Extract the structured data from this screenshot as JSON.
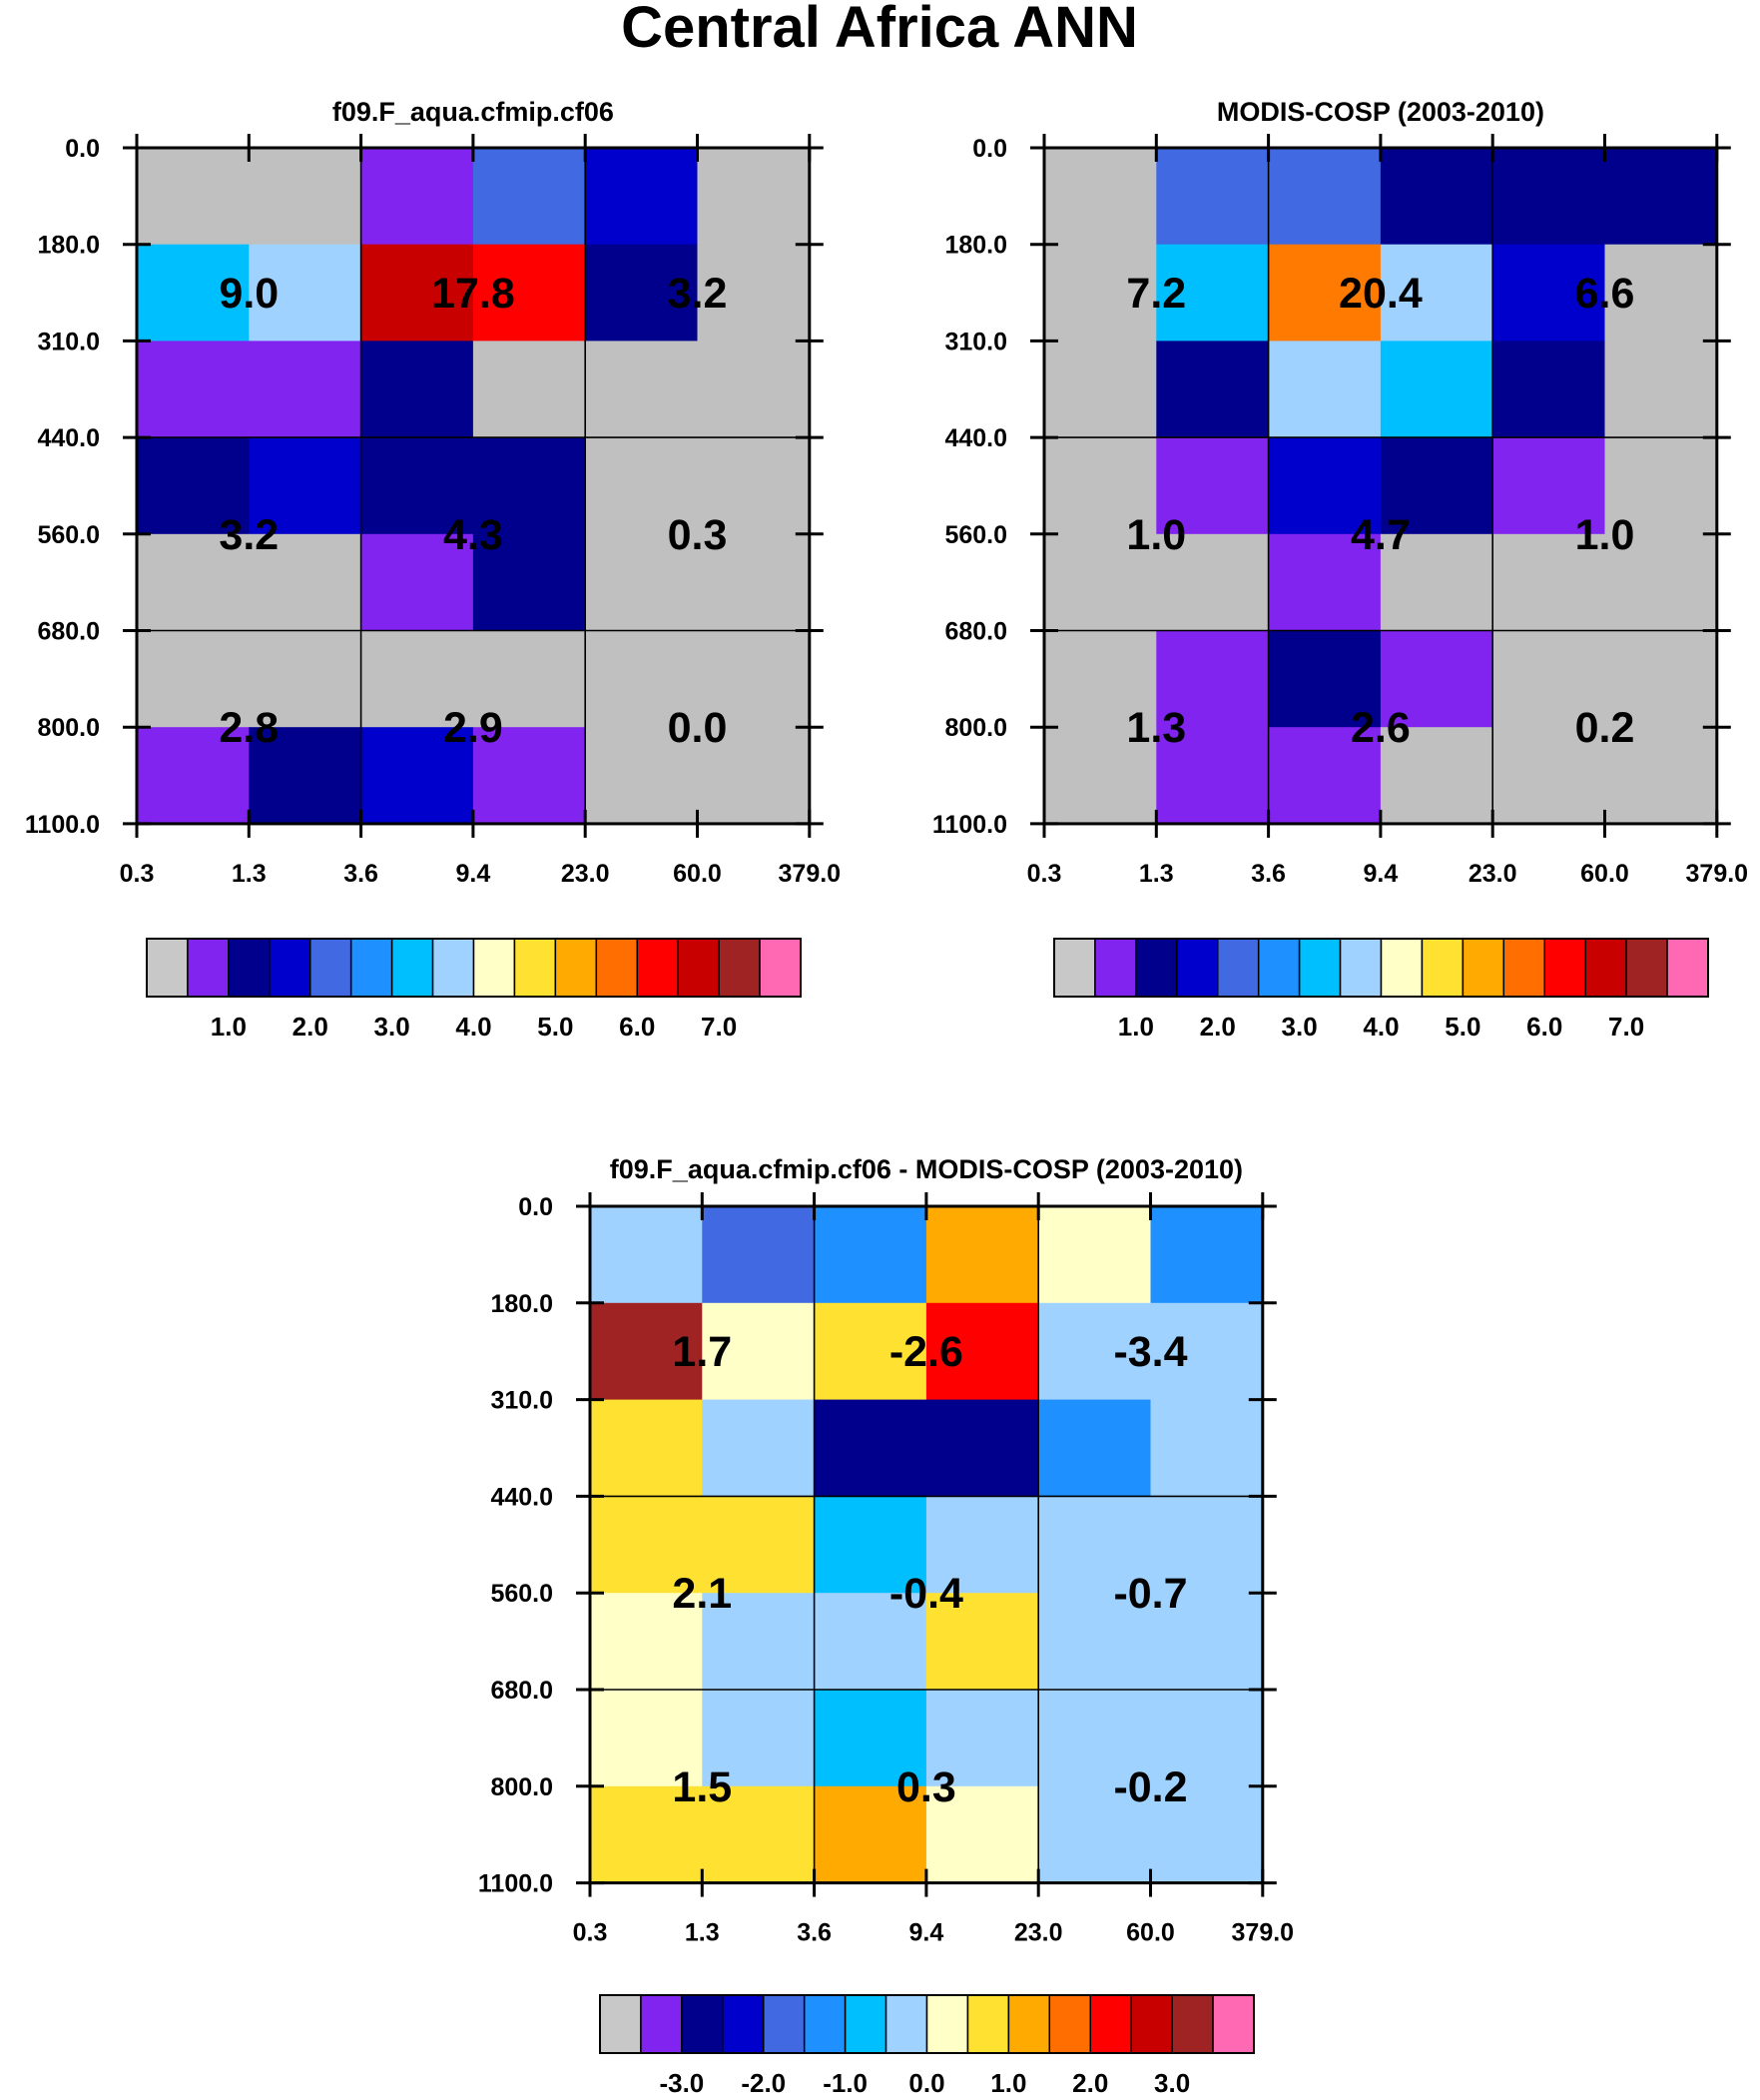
{
  "title": "Central Africa ANN",
  "chart_data": [
    {
      "type": "heatmap",
      "title": "f09.F_aqua.cfmip.cf06",
      "x_tick_labels": [
        "0.3",
        "1.3",
        "3.6",
        "9.4",
        "23.0",
        "60.0",
        "379.0"
      ],
      "y_tick_labels": [
        "0.0",
        "180.0",
        "310.0",
        "440.0",
        "560.0",
        "680.0",
        "800.0",
        "1100.0"
      ],
      "cell_colors": [
        [
          "#c0c0c0",
          "#c0c0c0",
          "#8224f0",
          "#4169e1",
          "#0000cd",
          "#c0c0c0"
        ],
        [
          "#00bfff",
          "#a0d2ff",
          "#c80000",
          "#ff0000",
          "#00008c",
          "#c0c0c0"
        ],
        [
          "#8224f0",
          "#8224f0",
          "#00008c",
          "#c0c0c0",
          "#c0c0c0",
          "#c0c0c0"
        ],
        [
          "#00008c",
          "#0000cd",
          "#00008c",
          "#00008c",
          "#c0c0c0",
          "#c0c0c0"
        ],
        [
          "#c0c0c0",
          "#c0c0c0",
          "#8224f0",
          "#00008c",
          "#c0c0c0",
          "#c0c0c0"
        ],
        [
          "#c0c0c0",
          "#c0c0c0",
          "#c0c0c0",
          "#c0c0c0",
          "#c0c0c0",
          "#c0c0c0"
        ],
        [
          "#8224f0",
          "#00008c",
          "#0000cd",
          "#8224f0",
          "#c0c0c0",
          "#c0c0c0"
        ]
      ],
      "group_totals": [
        [
          "9.0",
          "17.8",
          "3.2"
        ],
        [
          "3.2",
          "4.3",
          "0.3"
        ],
        [
          "2.8",
          "2.9",
          "0.0"
        ]
      ],
      "colorbar": {
        "colors": [
          "#c8c8c8",
          "#8224f0",
          "#00008c",
          "#0000cd",
          "#4169e1",
          "#1e90ff",
          "#00bfff",
          "#a0d2ff",
          "#ffffc8",
          "#ffe132",
          "#ffaa00",
          "#ff6e00",
          "#ff0000",
          "#c80000",
          "#a02323",
          "#ff69b4"
        ],
        "labels": [
          "1.0",
          "2.0",
          "3.0",
          "4.0",
          "5.0",
          "6.0",
          "7.0"
        ]
      }
    },
    {
      "type": "heatmap",
      "title": "MODIS-COSP (2003-2010)",
      "x_tick_labels": [
        "0.3",
        "1.3",
        "3.6",
        "9.4",
        "23.0",
        "60.0",
        "379.0"
      ],
      "y_tick_labels": [
        "0.0",
        "180.0",
        "310.0",
        "440.0",
        "560.0",
        "680.0",
        "800.0",
        "1100.0"
      ],
      "cell_colors": [
        [
          "#c0c0c0",
          "#4169e1",
          "#4169e1",
          "#00008c",
          "#00008c",
          "#00008c"
        ],
        [
          "#c0c0c0",
          "#00bfff",
          "#ff7a00",
          "#a0d2ff",
          "#0000cd",
          "#c0c0c0"
        ],
        [
          "#c0c0c0",
          "#00008c",
          "#a0d2ff",
          "#00bfff",
          "#00008c",
          "#c0c0c0"
        ],
        [
          "#c0c0c0",
          "#8224f0",
          "#0000cd",
          "#00008c",
          "#8224f0",
          "#c0c0c0"
        ],
        [
          "#c0c0c0",
          "#c0c0c0",
          "#8224f0",
          "#c0c0c0",
          "#c0c0c0",
          "#c0c0c0"
        ],
        [
          "#c0c0c0",
          "#8224f0",
          "#00008c",
          "#8224f0",
          "#c0c0c0",
          "#c0c0c0"
        ],
        [
          "#c0c0c0",
          "#8224f0",
          "#8224f0",
          "#c0c0c0",
          "#c0c0c0",
          "#c0c0c0"
        ]
      ],
      "group_totals": [
        [
          "7.2",
          "20.4",
          "6.6"
        ],
        [
          "1.0",
          "4.7",
          "1.0"
        ],
        [
          "1.3",
          "2.6",
          "0.2"
        ]
      ],
      "colorbar": {
        "colors": [
          "#c8c8c8",
          "#8224f0",
          "#00008c",
          "#0000cd",
          "#4169e1",
          "#1e90ff",
          "#00bfff",
          "#a0d2ff",
          "#ffffc8",
          "#ffe132",
          "#ffaa00",
          "#ff6e00",
          "#ff0000",
          "#c80000",
          "#a02323",
          "#ff69b4"
        ],
        "labels": [
          "1.0",
          "2.0",
          "3.0",
          "4.0",
          "5.0",
          "6.0",
          "7.0"
        ]
      }
    },
    {
      "type": "heatmap",
      "title": "f09.F_aqua.cfmip.cf06 - MODIS-COSP (2003-2010)",
      "x_tick_labels": [
        "0.3",
        "1.3",
        "3.6",
        "9.4",
        "23.0",
        "60.0",
        "379.0"
      ],
      "y_tick_labels": [
        "0.0",
        "180.0",
        "310.0",
        "440.0",
        "560.0",
        "680.0",
        "800.0",
        "1100.0"
      ],
      "cell_colors": [
        [
          "#a0d2ff",
          "#4169e1",
          "#1e90ff",
          "#ffaa00",
          "#ffffc8",
          "#1e90ff"
        ],
        [
          "#a02323",
          "#ffffc8",
          "#ffe132",
          "#ff0000",
          "#a0d2ff",
          "#a0d2ff"
        ],
        [
          "#ffe132",
          "#a0d2ff",
          "#00008c",
          "#00008c",
          "#1e90ff",
          "#a0d2ff"
        ],
        [
          "#ffe132",
          "#ffe132",
          "#00bfff",
          "#a0d2ff",
          "#a0d2ff",
          "#a0d2ff"
        ],
        [
          "#ffffc8",
          "#a0d2ff",
          "#a0d2ff",
          "#ffe132",
          "#a0d2ff",
          "#a0d2ff"
        ],
        [
          "#ffffc8",
          "#a0d2ff",
          "#00bfff",
          "#a0d2ff",
          "#a0d2ff",
          "#a0d2ff"
        ],
        [
          "#ffe132",
          "#ffe132",
          "#ffaa00",
          "#ffffc8",
          "#a0d2ff",
          "#a0d2ff"
        ]
      ],
      "group_totals": [
        [
          "1.7",
          "-2.6",
          "-3.4"
        ],
        [
          "2.1",
          "-0.4",
          "-0.7"
        ],
        [
          "1.5",
          "0.3",
          "-0.2"
        ]
      ],
      "colorbar": {
        "colors": [
          "#c8c8c8",
          "#8224f0",
          "#00008c",
          "#0000cd",
          "#4169e1",
          "#1e90ff",
          "#00bfff",
          "#a0d2ff",
          "#ffffc8",
          "#ffe132",
          "#ffaa00",
          "#ff6e00",
          "#ff0000",
          "#c80000",
          "#a02323",
          "#ff69b4"
        ],
        "labels": [
          "-3.0",
          "-2.0",
          "-1.0",
          "0.0",
          "1.0",
          "2.0",
          "3.0"
        ]
      }
    }
  ]
}
